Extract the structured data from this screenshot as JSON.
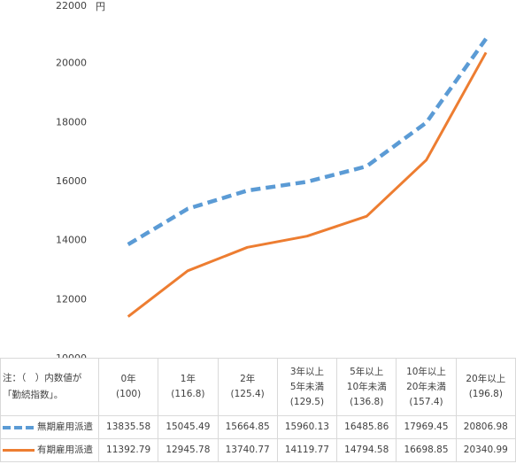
{
  "chart_data": {
    "type": "line",
    "unit_label": "円",
    "ylim": [
      10000,
      22000
    ],
    "yticks": [
      "10000",
      "12000",
      "14000",
      "16000",
      "18000",
      "20000",
      "22000"
    ],
    "categories": [
      [
        "0年",
        "(100)"
      ],
      [
        "1年",
        "(116.8)"
      ],
      [
        "2年",
        "(125.4)"
      ],
      [
        "3年以上",
        "5年未満",
        "(129.5)"
      ],
      [
        "5年以上",
        "10年未満",
        "(136.8)"
      ],
      [
        "10年以上",
        "20年未満",
        "(157.4)"
      ],
      [
        "20年以上",
        "(196.8)"
      ]
    ],
    "series": [
      {
        "name": "無期雇用派遣",
        "style": "dashed",
        "color": "#5b9bd5",
        "values": [
          13835.58,
          15045.49,
          15664.85,
          15960.13,
          16485.86,
          17969.45,
          20806.98
        ],
        "labels": [
          "13835.58",
          "15045.49",
          "15664.85",
          "15960.13",
          "16485.86",
          "17969.45",
          "20806.98"
        ]
      },
      {
        "name": "有期雇用派遣",
        "style": "solid",
        "color": "#ed7d31",
        "values": [
          11392.79,
          12945.78,
          13740.77,
          14119.77,
          14794.58,
          16698.85,
          20340.99
        ],
        "labels": [
          "11392.79",
          "12945.78",
          "13740.77",
          "14119.77",
          "14794.58",
          "16698.85",
          "20340.99"
        ]
      }
    ],
    "grid": false,
    "legend": "table-left"
  },
  "note": {
    "line1": "注：（　）内数値が",
    "line2": "「勤続指数」。"
  }
}
